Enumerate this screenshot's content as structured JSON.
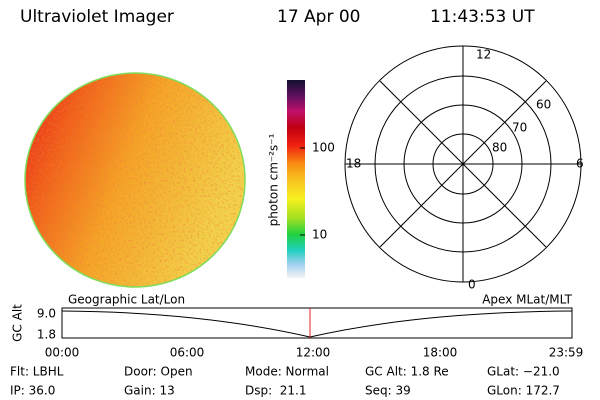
{
  "header": {
    "title": "Ultraviolet Imager",
    "date": "17 Apr 00",
    "time": "11:43:53 UT"
  },
  "colorbar": {
    "label": "photon cm⁻²s⁻¹",
    "ticks": [
      "100",
      "10"
    ]
  },
  "polar": {
    "clock": [
      "12",
      "18",
      "6",
      "0"
    ],
    "rings": [
      "60",
      "70",
      "80"
    ]
  },
  "timeline": {
    "left_title": "Geographic Lat/Lon",
    "right_title": "Apex MLat/MLT",
    "axis_label": "GC Alt",
    "yticks": [
      "9.0",
      "1.8"
    ],
    "times": [
      "00:00",
      "06:00",
      "12:00",
      "18:00",
      "23:59"
    ]
  },
  "status": {
    "rows": [
      [
        "Flt: LBHL",
        "Door: Open",
        "Mode: Normal",
        "GC Alt: 1.8 Re",
        "GLat: −21.0"
      ],
      [
        "IP: 36.0",
        "Gain: 13",
        "Dsp:  21.1",
        "Seq: 39",
        "GLon: 172.7"
      ]
    ]
  }
}
